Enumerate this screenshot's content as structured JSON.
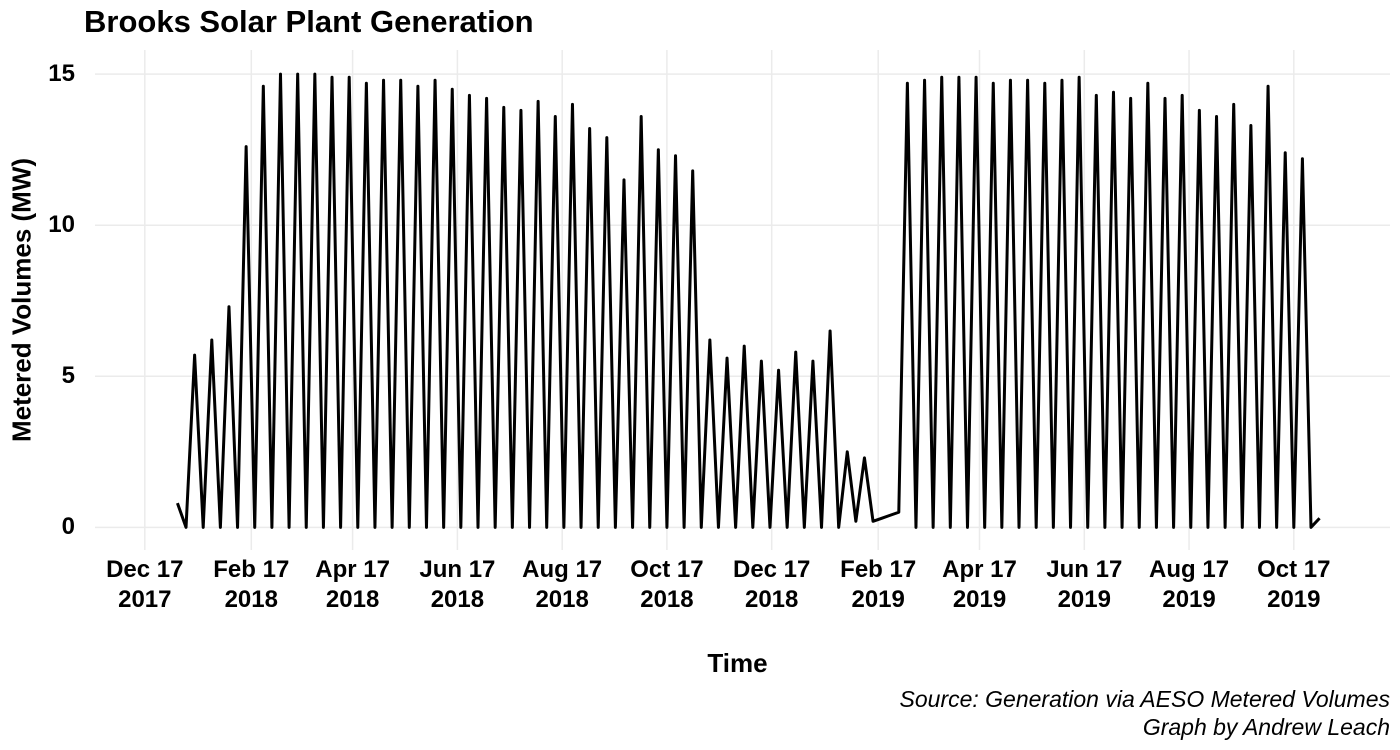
{
  "chart_data": {
    "type": "line",
    "title": "Brooks Solar Plant Generation",
    "x_label": "Time",
    "y_label": "Metered Volumes (MW)",
    "caption": [
      "Source: Generation via AESO Metered Volumes",
      "Graph by Andrew Leach"
    ],
    "grid": true,
    "xlim": [
      "2017-11-18",
      "2019-12-12"
    ],
    "ylim": [
      -0.75,
      15.8
    ],
    "yticks": [
      0,
      5,
      10,
      15
    ],
    "xticks": [
      {
        "value": "2017-12-17",
        "label": "Dec 17\n2017"
      },
      {
        "value": "2018-02-17",
        "label": "Feb 17\n2018"
      },
      {
        "value": "2018-04-17",
        "label": "Apr 17\n2018"
      },
      {
        "value": "2018-06-17",
        "label": "Jun 17\n2018"
      },
      {
        "value": "2018-08-17",
        "label": "Aug 17\n2018"
      },
      {
        "value": "2018-10-17",
        "label": "Oct 17\n2018"
      },
      {
        "value": "2018-12-17",
        "label": "Dec 17\n2018"
      },
      {
        "value": "2019-02-17",
        "label": "Feb 17\n2019"
      },
      {
        "value": "2019-04-17",
        "label": "Apr 17\n2019"
      },
      {
        "value": "2019-06-17",
        "label": "Jun 17\n2019"
      },
      {
        "value": "2019-08-17",
        "label": "Aug 17\n2019"
      },
      {
        "value": "2019-10-17",
        "label": "Oct 17\n2019"
      }
    ],
    "x": [
      "2018-01-05",
      "2018-01-10",
      "2018-01-15",
      "2018-01-20",
      "2018-01-25",
      "2018-01-30",
      "2018-02-04",
      "2018-02-09",
      "2018-02-14",
      "2018-02-19",
      "2018-02-24",
      "2018-03-01",
      "2018-03-06",
      "2018-03-11",
      "2018-03-16",
      "2018-03-21",
      "2018-03-26",
      "2018-03-31",
      "2018-04-05",
      "2018-04-10",
      "2018-04-15",
      "2018-04-20",
      "2018-04-25",
      "2018-04-30",
      "2018-05-05",
      "2018-05-10",
      "2018-05-15",
      "2018-05-20",
      "2018-05-25",
      "2018-05-30",
      "2018-06-04",
      "2018-06-09",
      "2018-06-14",
      "2018-06-19",
      "2018-06-24",
      "2018-06-29",
      "2018-07-04",
      "2018-07-09",
      "2018-07-14",
      "2018-07-19",
      "2018-07-24",
      "2018-07-29",
      "2018-08-03",
      "2018-08-08",
      "2018-08-13",
      "2018-08-18",
      "2018-08-23",
      "2018-08-28",
      "2018-09-02",
      "2018-09-07",
      "2018-09-12",
      "2018-09-17",
      "2018-09-22",
      "2018-09-27",
      "2018-10-02",
      "2018-10-07",
      "2018-10-12",
      "2018-10-17",
      "2018-10-22",
      "2018-10-27",
      "2018-11-01",
      "2018-11-06",
      "2018-11-11",
      "2018-11-16",
      "2018-11-21",
      "2018-11-26",
      "2018-12-01",
      "2018-12-06",
      "2018-12-11",
      "2018-12-16",
      "2018-12-21",
      "2018-12-26",
      "2018-12-31",
      "2019-01-05",
      "2019-01-10",
      "2019-01-15",
      "2019-01-20",
      "2019-01-25",
      "2019-01-30",
      "2019-02-04",
      "2019-02-09",
      "2019-02-14",
      "2019-02-19",
      "2019-02-24",
      "2019-03-01",
      "2019-03-06",
      "2019-03-11",
      "2019-03-16",
      "2019-03-21",
      "2019-03-26",
      "2019-03-31",
      "2019-04-05",
      "2019-04-10",
      "2019-04-15",
      "2019-04-20",
      "2019-04-25",
      "2019-04-30",
      "2019-05-05",
      "2019-05-10",
      "2019-05-15",
      "2019-05-20",
      "2019-05-25",
      "2019-05-30",
      "2019-06-04",
      "2019-06-09",
      "2019-06-14",
      "2019-06-19",
      "2019-06-24",
      "2019-06-29",
      "2019-07-04",
      "2019-07-09",
      "2019-07-14",
      "2019-07-19",
      "2019-07-24",
      "2019-07-29",
      "2019-08-03",
      "2019-08-08",
      "2019-08-13",
      "2019-08-18",
      "2019-08-23",
      "2019-08-28",
      "2019-09-02",
      "2019-09-07",
      "2019-09-12",
      "2019-09-17",
      "2019-09-22",
      "2019-09-27",
      "2019-10-02",
      "2019-10-07",
      "2019-10-12",
      "2019-10-17",
      "2019-10-22",
      "2019-10-27",
      "2019-11-01"
    ],
    "series": [
      {
        "name": "Metered Volumes",
        "color": "#000000",
        "values": [
          0.8,
          0,
          5.7,
          0,
          6.2,
          0,
          7.3,
          0,
          12.6,
          0,
          14.6,
          0,
          15.0,
          0,
          15.0,
          0,
          15.0,
          0,
          14.9,
          0,
          14.9,
          0,
          14.7,
          0,
          14.8,
          0,
          14.8,
          0,
          14.6,
          0,
          14.8,
          0,
          14.5,
          0,
          14.3,
          0,
          14.2,
          0,
          13.9,
          0,
          13.8,
          0,
          14.1,
          0,
          13.6,
          0,
          14.0,
          0,
          13.2,
          0,
          12.9,
          0,
          11.5,
          0,
          13.6,
          0,
          12.5,
          0,
          12.3,
          0,
          11.8,
          0,
          6.2,
          0,
          5.6,
          0,
          6.0,
          0,
          5.5,
          0,
          5.2,
          0,
          5.8,
          0,
          5.5,
          0,
          6.5,
          0,
          2.5,
          0.2,
          2.3,
          0.2,
          0.3,
          0.4,
          0.5,
          14.7,
          0,
          14.8,
          0,
          14.9,
          0,
          14.9,
          0,
          14.9,
          0,
          14.7,
          0,
          14.8,
          0,
          14.8,
          0,
          14.7,
          0,
          14.8,
          0,
          14.9,
          0,
          14.3,
          0,
          14.4,
          0,
          14.2,
          0,
          14.7,
          0,
          14.2,
          0,
          14.3,
          0,
          13.8,
          0,
          13.6,
          0,
          14.0,
          0,
          13.3,
          0,
          14.6,
          0,
          12.4,
          0,
          12.2,
          0,
          0.3
        ]
      }
    ]
  }
}
